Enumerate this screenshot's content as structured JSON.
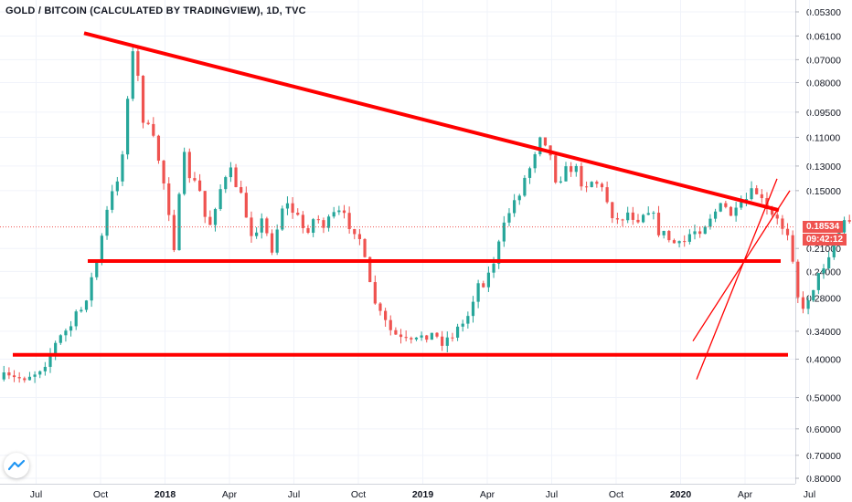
{
  "header": {
    "title": "GOLD / BITCOIN (CALCULATED BY TRADINGVIEW), 1D, TVC"
  },
  "price_badge": {
    "value": "0.18534",
    "countdown": "09:42:12"
  },
  "colors": {
    "up": "#26a69a",
    "down": "#ef5350",
    "trend": "#ff0000",
    "badge": "#ef5350",
    "grid": "#f0f3fa",
    "axis_text": "#131722"
  },
  "chart_data": {
    "type": "candlestick",
    "scale": "log",
    "y_inverted": true,
    "y_ticks": [
      "0.05300",
      "0.06100",
      "0.07000",
      "0.08000",
      "0.09500",
      "0.11000",
      "0.13000",
      "0.15000",
      "0.18534",
      "0.21000",
      "0.24000",
      "0.28000",
      "0.34000",
      "0.40000",
      "0.50000",
      "0.60000",
      "0.70000",
      "0.80000"
    ],
    "x_ticks": [
      "Jul",
      "Oct",
      "2018",
      "Apr",
      "Jul",
      "Oct",
      "2019",
      "Apr",
      "Jul",
      "Oct",
      "2020",
      "Apr",
      "Jul"
    ],
    "bold_x_ticks": [
      "2018",
      "2019",
      "2020"
    ],
    "grid": true,
    "price_points": [
      {
        "t": 0,
        "v": 0.5
      },
      {
        "t": 0.03,
        "v": 0.48
      },
      {
        "t": 0.05,
        "v": 0.42
      },
      {
        "t": 0.07,
        "v": 0.36
      },
      {
        "t": 0.09,
        "v": 0.3
      },
      {
        "t": 0.11,
        "v": 0.24
      },
      {
        "t": 0.13,
        "v": 0.19
      },
      {
        "t": 0.145,
        "v": 0.14
      },
      {
        "t": 0.16,
        "v": 0.078
      },
      {
        "t": 0.17,
        "v": 0.07
      },
      {
        "t": 0.185,
        "v": 0.09
      },
      {
        "t": 0.2,
        "v": 0.12
      },
      {
        "t": 0.215,
        "v": 0.14
      },
      {
        "t": 0.23,
        "v": 0.11
      },
      {
        "t": 0.245,
        "v": 0.16
      },
      {
        "t": 0.26,
        "v": 0.19
      },
      {
        "t": 0.28,
        "v": 0.14
      },
      {
        "t": 0.3,
        "v": 0.16
      },
      {
        "t": 0.32,
        "v": 0.19
      },
      {
        "t": 0.34,
        "v": 0.15
      },
      {
        "t": 0.36,
        "v": 0.18
      },
      {
        "t": 0.38,
        "v": 0.17
      },
      {
        "t": 0.4,
        "v": 0.18
      },
      {
        "t": 0.42,
        "v": 0.175
      },
      {
        "t": 0.44,
        "v": 0.19
      },
      {
        "t": 0.46,
        "v": 0.24
      },
      {
        "t": 0.47,
        "v": 0.3
      },
      {
        "t": 0.48,
        "v": 0.36
      },
      {
        "t": 0.5,
        "v": 0.35
      },
      {
        "t": 0.52,
        "v": 0.38
      },
      {
        "t": 0.54,
        "v": 0.36
      },
      {
        "t": 0.56,
        "v": 0.34
      },
      {
        "t": 0.58,
        "v": 0.27
      },
      {
        "t": 0.6,
        "v": 0.22
      },
      {
        "t": 0.62,
        "v": 0.15
      },
      {
        "t": 0.635,
        "v": 0.105
      },
      {
        "t": 0.65,
        "v": 0.13
      },
      {
        "t": 0.67,
        "v": 0.14
      },
      {
        "t": 0.69,
        "v": 0.15
      },
      {
        "t": 0.71,
        "v": 0.18
      },
      {
        "t": 0.73,
        "v": 0.15
      },
      {
        "t": 0.75,
        "v": 0.21
      },
      {
        "t": 0.77,
        "v": 0.19
      },
      {
        "t": 0.79,
        "v": 0.2
      },
      {
        "t": 0.81,
        "v": 0.175
      },
      {
        "t": 0.83,
        "v": 0.15
      },
      {
        "t": 0.845,
        "v": 0.18
      },
      {
        "t": 0.86,
        "v": 0.22
      },
      {
        "t": 0.875,
        "v": 0.33
      },
      {
        "t": 0.89,
        "v": 0.27
      },
      {
        "t": 0.905,
        "v": 0.22
      },
      {
        "t": 0.92,
        "v": 0.18
      },
      {
        "t": 0.935,
        "v": 0.185
      }
    ],
    "trend_lines": [
      {
        "name": "descending-resistance",
        "from": {
          "date": "2017-10",
          "price": 0.06
        },
        "to": {
          "date": "2020-06",
          "price": 0.168
        }
      },
      {
        "name": "horizontal-support-upper",
        "from": {
          "date": "2017-10",
          "price": 0.226
        },
        "to": {
          "date": "2020-06",
          "price": 0.226
        }
      },
      {
        "name": "horizontal-support-lower",
        "from": {
          "date": "2017-06",
          "price": 0.39
        },
        "to": {
          "date": "2020-06",
          "price": 0.39
        }
      },
      {
        "name": "rising-line-1",
        "from": {
          "date": "2020-03",
          "price": 0.36
        },
        "to": {
          "date": "2020-06",
          "price": 0.15
        }
      },
      {
        "name": "rising-line-2",
        "from": {
          "date": "2020-03",
          "price": 0.45
        },
        "to": {
          "date": "2020-06",
          "price": 0.14
        }
      }
    ]
  }
}
